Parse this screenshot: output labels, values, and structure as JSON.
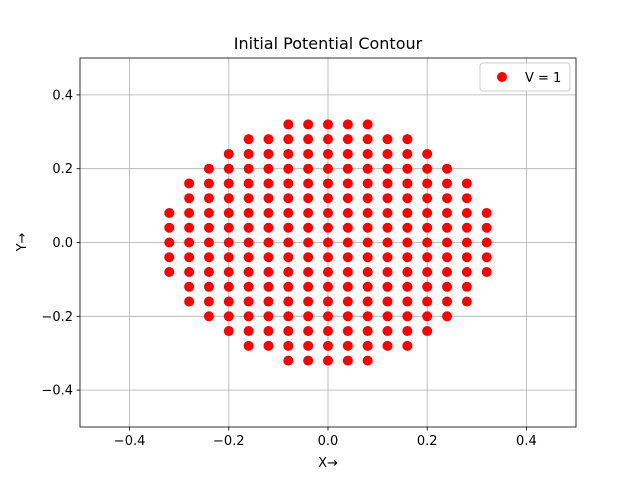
{
  "chart_data": {
    "type": "scatter",
    "title": "Initial Potential Contour",
    "xlabel": "X→",
    "ylabel": "Y→",
    "xlim": [
      -0.5,
      0.5
    ],
    "ylim": [
      -0.5,
      0.5
    ],
    "xticks": [
      -0.4,
      -0.2,
      0.0,
      0.2,
      0.4
    ],
    "yticks": [
      -0.4,
      -0.2,
      0.0,
      0.2,
      0.4
    ],
    "xtick_labels": [
      "−0.4",
      "−0.2",
      "0.0",
      "0.2",
      "0.4"
    ],
    "ytick_labels": [
      "−0.4",
      "−0.2",
      "0.0",
      "0.2",
      "0.4"
    ],
    "grid": true,
    "legend": {
      "position": "top-right",
      "entries": [
        "V = 1"
      ]
    },
    "series": [
      {
        "name": "V = 1",
        "color": "#ff0000",
        "marker": "circle",
        "grid_spacing": 0.04,
        "columns": [
          {
            "x": -0.32,
            "y_min": -0.08,
            "y_max": 0.08
          },
          {
            "x": -0.28,
            "y_min": -0.16,
            "y_max": 0.16
          },
          {
            "x": -0.24,
            "y_min": -0.2,
            "y_max": 0.2
          },
          {
            "x": -0.2,
            "y_min": -0.24,
            "y_max": 0.24
          },
          {
            "x": -0.16,
            "y_min": -0.28,
            "y_max": 0.28
          },
          {
            "x": -0.12,
            "y_min": -0.28,
            "y_max": 0.28
          },
          {
            "x": -0.08,
            "y_min": -0.32,
            "y_max": 0.32
          },
          {
            "x": -0.04,
            "y_min": -0.32,
            "y_max": 0.32
          },
          {
            "x": 0.0,
            "y_min": -0.32,
            "y_max": 0.32
          },
          {
            "x": 0.04,
            "y_min": -0.32,
            "y_max": 0.32
          },
          {
            "x": 0.08,
            "y_min": -0.32,
            "y_max": 0.32
          },
          {
            "x": 0.12,
            "y_min": -0.28,
            "y_max": 0.28
          },
          {
            "x": 0.16,
            "y_min": -0.28,
            "y_max": 0.28
          },
          {
            "x": 0.2,
            "y_min": -0.24,
            "y_max": 0.24
          },
          {
            "x": 0.24,
            "y_min": -0.2,
            "y_max": 0.2
          },
          {
            "x": 0.28,
            "y_min": -0.16,
            "y_max": 0.16
          },
          {
            "x": 0.32,
            "y_min": -0.08,
            "y_max": 0.08
          }
        ]
      }
    ]
  }
}
